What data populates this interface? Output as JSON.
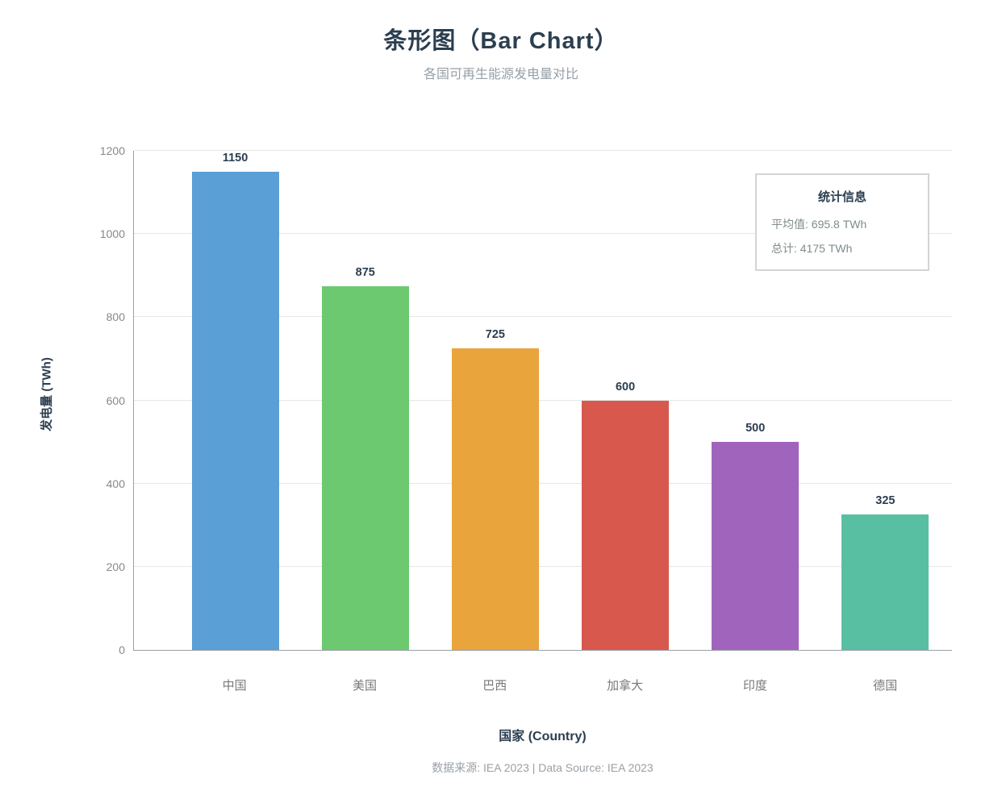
{
  "title": "条形图（Bar Chart）",
  "subtitle": "各国可再生能源发电量对比",
  "chart_data": {
    "type": "bar",
    "categories": [
      "中国",
      "美国",
      "巴西",
      "加拿大",
      "印度",
      "德国"
    ],
    "values": [
      1150,
      875,
      725,
      600,
      500,
      325
    ],
    "colors": [
      "#5A9FD6",
      "#6CC96F",
      "#E9A43C",
      "#D9584E",
      "#A164BD",
      "#59BFA3"
    ],
    "title": "条形图（Bar Chart）",
    "subtitle": "各国可再生能源发电量对比",
    "xlabel": "国家 (Country)",
    "ylabel": "发电量 (TWh)",
    "ylim": [
      0,
      1200
    ],
    "ytick_step": 200,
    "yticks": [
      0,
      200,
      400,
      600,
      800,
      1000,
      1200
    ],
    "grid": true,
    "legend": false,
    "value_labels": true
  },
  "stats_box": {
    "title": "统计信息",
    "lines": [
      "平均值: 695.8 TWh",
      "总计: 4175 TWh"
    ]
  },
  "footer": "数据来源: IEA 2023 | Data Source: IEA 2023",
  "colors": {
    "title_text": "#2c3e50",
    "subtitle_text": "#95a0a8",
    "axis_line": "#9aa0a6",
    "gridline": "#e7e7e7",
    "tick_text": "#85898d",
    "stats_border": "#d4d4d4"
  }
}
